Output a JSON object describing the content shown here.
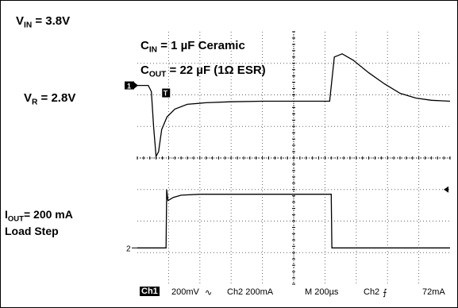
{
  "chart_data": {
    "type": "line",
    "title": "",
    "grid": true,
    "xlim": [
      0,
      10
    ],
    "ylim": [
      -4,
      4
    ],
    "annotations": {
      "vin": {
        "main": "V",
        "sub": "IN",
        "rest": " = 3.8V"
      },
      "cin": {
        "main": "C",
        "sub": "IN",
        "rest": " = 1 µF Ceramic"
      },
      "cout": {
        "main": "C",
        "sub": "OUT",
        "rest": " = 22 µF (1Ω ESR)"
      },
      "vr": {
        "main": "V",
        "sub": "R",
        "rest": " = 2.8V"
      },
      "iout": {
        "main": "I",
        "sub": "OUT",
        "rest": "= 200 mA"
      },
      "load_step": "Load Step"
    },
    "channel_markers": {
      "ch1": "1",
      "ch2": "2",
      "trigger": "T"
    },
    "series": [
      {
        "values": [
          [
            0,
            2.3
          ],
          [
            0.35,
            2.3
          ],
          [
            0.45,
            2.1
          ],
          [
            0.52,
            1.0
          ],
          [
            0.6,
            0.05
          ],
          [
            0.68,
            0.2
          ],
          [
            0.78,
            0.9
          ],
          [
            0.95,
            1.3
          ],
          [
            1.2,
            1.55
          ],
          [
            1.6,
            1.7
          ],
          [
            2.2,
            1.75
          ],
          [
            3.0,
            1.78
          ],
          [
            4.0,
            1.8
          ],
          [
            5.0,
            1.8
          ],
          [
            6.0,
            1.8
          ],
          [
            6.15,
            1.8
          ],
          [
            6.3,
            3.2
          ],
          [
            6.55,
            3.3
          ],
          [
            6.9,
            3.1
          ],
          [
            7.4,
            2.7
          ],
          [
            7.9,
            2.35
          ],
          [
            8.4,
            2.05
          ],
          [
            8.9,
            1.9
          ],
          [
            9.4,
            1.83
          ],
          [
            10,
            1.8
          ]
        ]
      },
      {
        "values": [
          [
            0,
            -2.85
          ],
          [
            0.92,
            -2.85
          ],
          [
            0.94,
            -1.0
          ],
          [
            0.98,
            -1.35
          ],
          [
            1.15,
            -1.25
          ],
          [
            1.4,
            -1.18
          ],
          [
            2.0,
            -1.15
          ],
          [
            3.5,
            -1.15
          ],
          [
            5.0,
            -1.15
          ],
          [
            6.2,
            -1.15
          ],
          [
            6.22,
            -2.85
          ],
          [
            10,
            -2.85
          ]
        ]
      }
    ],
    "status": {
      "ch1_label": "Ch1",
      "ch1_scale": "200mV",
      "ch1_coupling": "∿",
      "ch2_scale": "Ch2  200mA",
      "timebase": "M 200µs",
      "trigger_source": "Ch2",
      "trigger_slope": "⨍",
      "trigger_level": "72mA"
    },
    "colors": {
      "trace": "#000000",
      "grid": "#000000",
      "background": "#ffffff"
    }
  }
}
